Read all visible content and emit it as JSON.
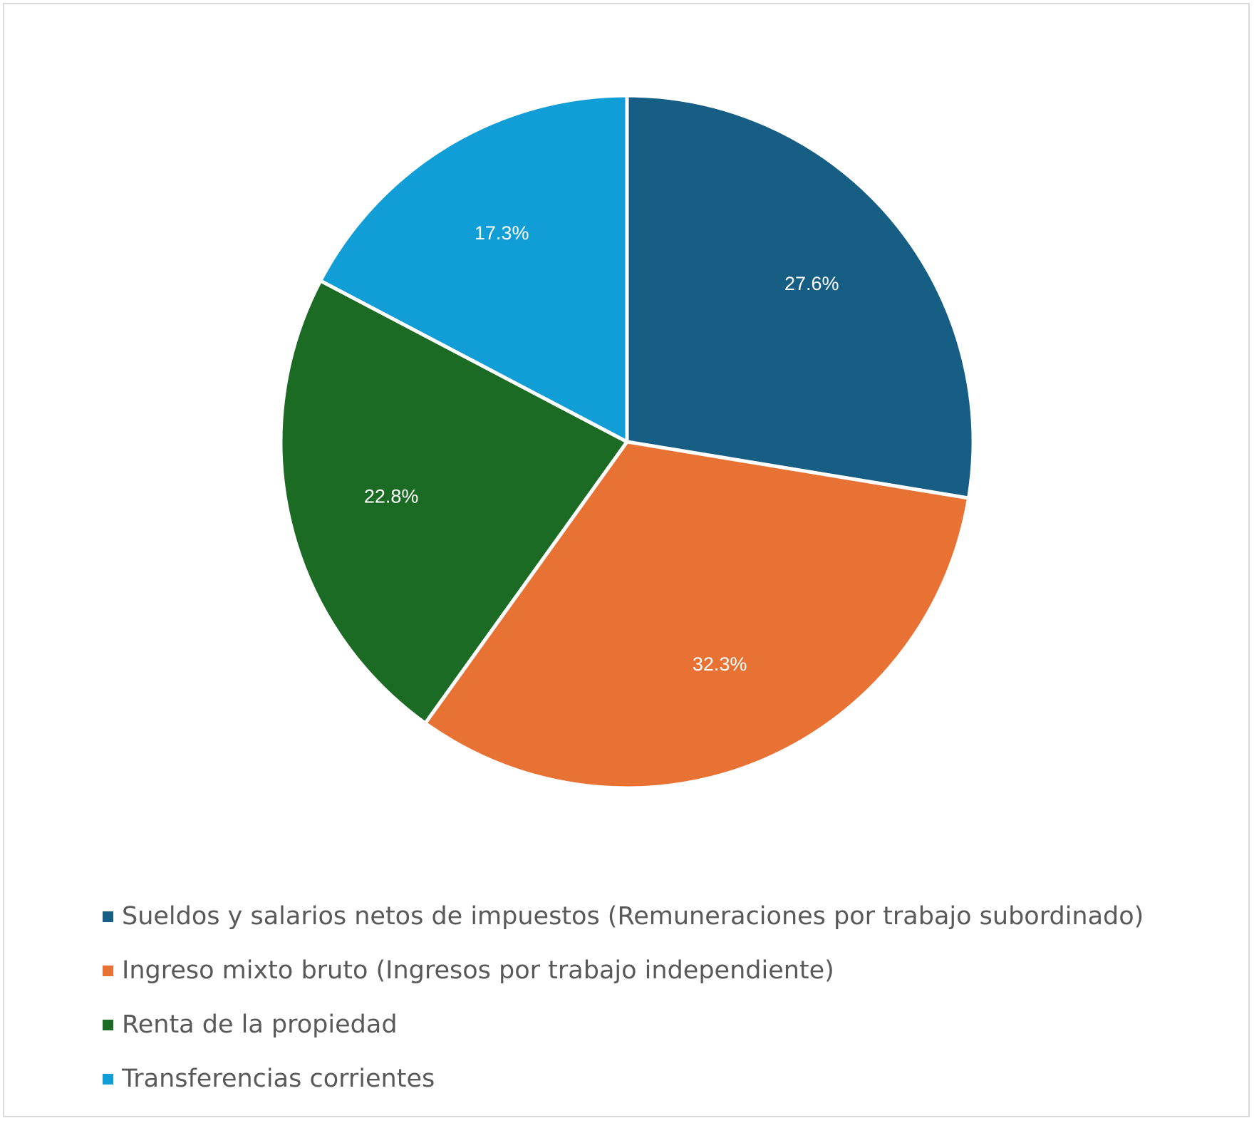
{
  "chart_data": {
    "type": "pie",
    "title": "",
    "categories": [
      "Sueldos y salarios netos de impuestos  (Remuneraciones por trabajo subordinado)",
      "Ingreso mixto bruto (Ingresos por trabajo independiente)",
      "Renta de la propiedad",
      "Transferencias corrientes"
    ],
    "values": [
      27.6,
      32.3,
      22.8,
      17.3
    ],
    "data_labels": [
      "27.6%",
      "32.3%",
      "22.8%",
      "17.3%"
    ],
    "colors": [
      "#175e84",
      "#e87234",
      "#1c6b24",
      "#119ed6"
    ],
    "start_angle_deg": 0,
    "direction": "clockwise",
    "legend_position": "bottom"
  },
  "legend": {
    "items": [
      {
        "label": "Sueldos y salarios netos de impuestos  (Remuneraciones por trabajo subordinado)",
        "color": "#175e84"
      },
      {
        "label": "Ingreso mixto bruto (Ingresos por trabajo independiente)",
        "color": "#e87234"
      },
      {
        "label": "Renta de la propiedad",
        "color": "#1c6b24"
      },
      {
        "label": "Transferencias corrientes",
        "color": "#119ed6"
      }
    ]
  }
}
